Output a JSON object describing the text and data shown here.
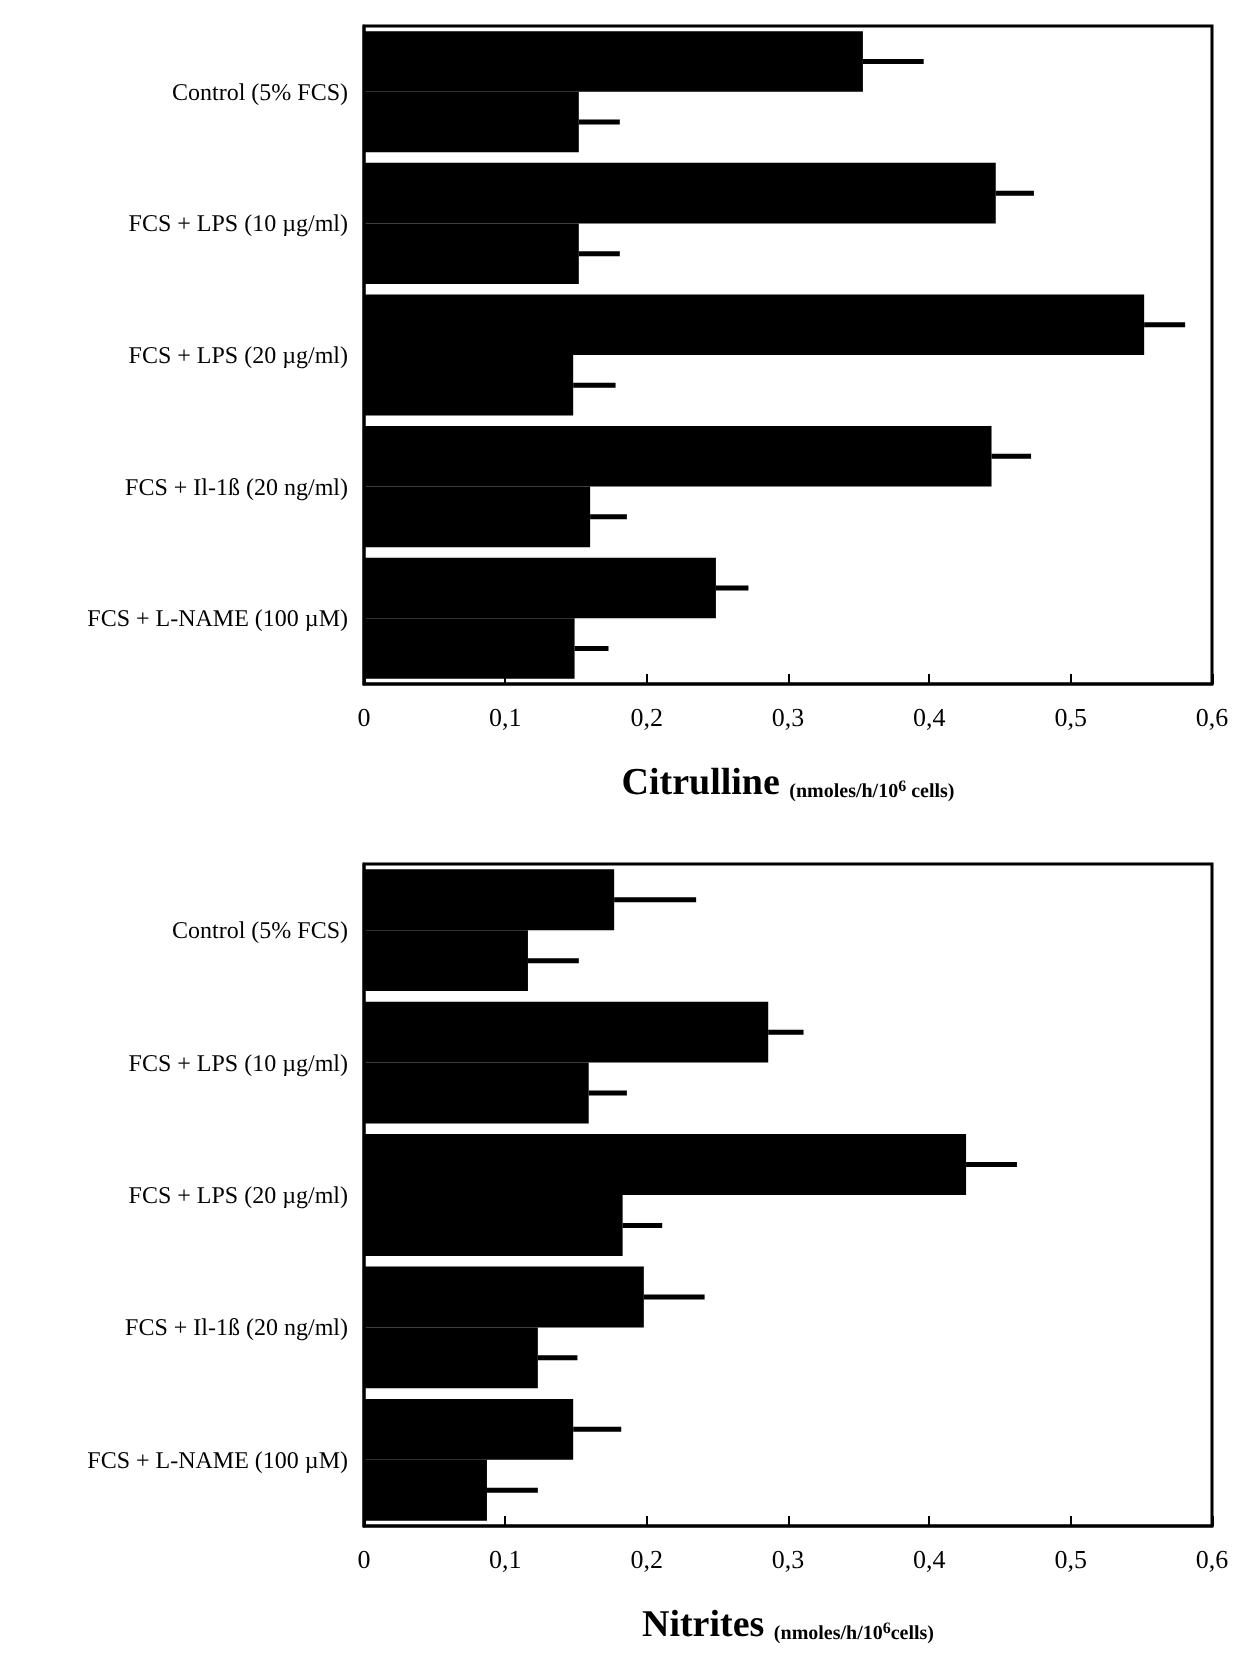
{
  "chart_data": [
    {
      "type": "bar",
      "orientation": "horizontal",
      "xlabel": "Citrulline (nmoles/h/10$^{6}$ cells)",
      "categories": [
        "Control (5% FCS)",
        "FCS + LPS (10 µg/ml)",
        "FCS + LPS (20 µg/ml)",
        "FCS + Il-1ß (20 ng/ml)",
        "FCS + L-NAME (100 µM)"
      ],
      "series": [
        {
          "color": "#000000",
          "values": [
            0.353,
            0.447,
            0.552,
            0.444,
            0.249
          ],
          "errors": [
            [
              0.353,
              0.396
            ],
            [
              0.447,
              0.474
            ],
            [
              0.552,
              0.581
            ],
            [
              0.444,
              0.472
            ],
            [
              0.249,
              0.272
            ]
          ]
        },
        {
          "color": "#000000",
          "values": [
            0.152,
            0.152,
            0.148,
            0.16,
            0.149
          ],
          "errors": [
            [
              0.152,
              0.181
            ],
            [
              0.152,
              0.181
            ],
            [
              0.148,
              0.178
            ],
            [
              0.16,
              0.186
            ],
            [
              0.149,
              0.173
            ]
          ]
        }
      ],
      "xlim": [
        0,
        0.6
      ],
      "xticks": [
        0,
        {
          "value": 0.1,
          "label": "0,1"
        },
        {
          "value": 0.2,
          "label": "0,2"
        },
        {
          "value": 0.3,
          "label": "0,3"
        },
        {
          "value": 0.4,
          "label": "0,4"
        },
        {
          "value": 0.5,
          "label": "0,5"
        },
        {
          "value": 0.6,
          "label": "0,6"
        }
      ],
      "grid": false
    },
    {
      "type": "bar",
      "orientation": "horizontal",
      "xlabel": "Nitrites (nmoles/h/10$^{6}$cells)",
      "categories": [
        "Control (5% FCS)",
        "FCS + LPS (10 µg/ml)",
        "FCS + LPS (20 µg/ml)",
        "FCS + Il-1ß (20 ng/ml)",
        "FCS + L-NAME (100 µM)"
      ],
      "series": [
        {
          "color": "#000000",
          "values": [
            0.177,
            0.286,
            0.426,
            0.198,
            0.148
          ],
          "errors": [
            [
              0.177,
              0.235
            ],
            [
              0.286,
              0.311
            ],
            [
              0.426,
              0.462
            ],
            [
              0.198,
              0.241
            ],
            [
              0.148,
              0.182
            ]
          ]
        },
        {
          "color": "#000000",
          "values": [
            0.116,
            0.159,
            0.183,
            0.123,
            0.087
          ],
          "errors": [
            [
              0.116,
              0.152
            ],
            [
              0.159,
              0.186
            ],
            [
              0.183,
              0.211
            ],
            [
              0.123,
              0.151
            ],
            [
              0.087,
              0.123
            ]
          ]
        }
      ],
      "xlim": [
        0,
        0.6
      ],
      "xticks": [
        0,
        {
          "value": 0.1,
          "label": "0,1"
        },
        {
          "value": 0.2,
          "label": "0,2"
        },
        {
          "value": 0.3,
          "label": "0,3"
        },
        {
          "value": 0.4,
          "label": "0,4"
        },
        {
          "value": 0.5,
          "label": "0,5"
        },
        {
          "value": 0.6,
          "label": "0,6"
        }
      ],
      "grid": false
    }
  ]
}
